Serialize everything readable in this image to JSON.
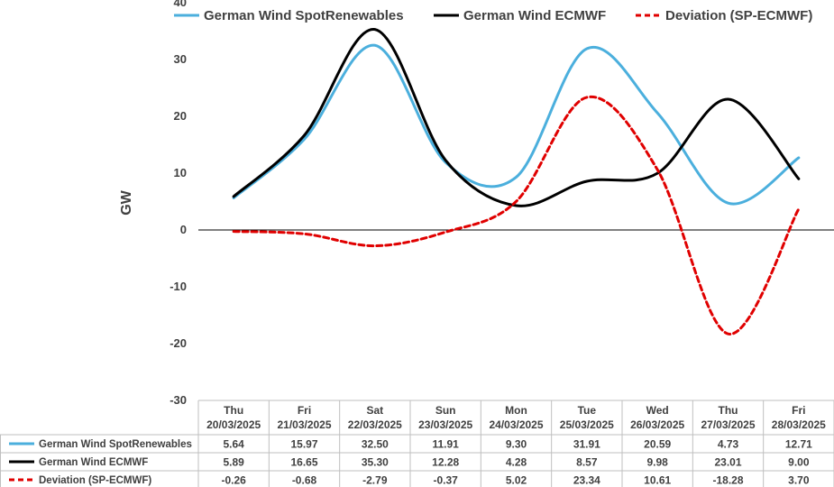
{
  "chart_data": {
    "type": "line",
    "ylabel": "GW",
    "ylim": [
      -30,
      40
    ],
    "yticks": [
      -30,
      -20,
      -10,
      0,
      10,
      20,
      30,
      40
    ],
    "categories": [
      {
        "day": "Thu",
        "date": "20/03/2025"
      },
      {
        "day": "Fri",
        "date": "21/03/2025"
      },
      {
        "day": "Sat",
        "date": "22/03/2025"
      },
      {
        "day": "Sun",
        "date": "23/03/2025"
      },
      {
        "day": "Mon",
        "date": "24/03/2025"
      },
      {
        "day": "Tue",
        "date": "25/03/2025"
      },
      {
        "day": "Wed",
        "date": "26/03/2025"
      },
      {
        "day": "Thu",
        "date": "27/03/2025"
      },
      {
        "day": "Fri",
        "date": "28/03/2025"
      }
    ],
    "series": [
      {
        "name": "German Wind SpotRenewables",
        "color": "#4BAFDD",
        "style": "solid",
        "values": [
          5.64,
          15.97,
          32.5,
          11.91,
          9.3,
          31.91,
          20.59,
          4.73,
          12.71
        ],
        "labels": [
          "5.64",
          "15.97",
          "32.50",
          "11.91",
          "9.30",
          "31.91",
          "20.59",
          "4.73",
          "12.71"
        ]
      },
      {
        "name": "German Wind ECMWF",
        "color": "#000000",
        "style": "solid",
        "values": [
          5.89,
          16.65,
          35.3,
          12.28,
          4.28,
          8.57,
          9.98,
          23.01,
          9.0
        ],
        "labels": [
          "5.89",
          "16.65",
          "35.30",
          "12.28",
          "4.28",
          "8.57",
          "9.98",
          "23.01",
          "9.00"
        ]
      },
      {
        "name": "Deviation (SP-ECMWF)",
        "color": "#E00000",
        "style": "dashed",
        "values": [
          -0.26,
          -0.68,
          -2.79,
          -0.37,
          5.02,
          23.34,
          10.61,
          -18.28,
          3.7
        ],
        "labels": [
          "-0.26",
          "-0.68",
          "-2.79",
          "-0.37",
          "5.02",
          "23.34",
          "10.61",
          "-18.28",
          "3.70"
        ]
      }
    ],
    "legend": {
      "position": "top"
    },
    "data_table": true,
    "grid": false
  }
}
